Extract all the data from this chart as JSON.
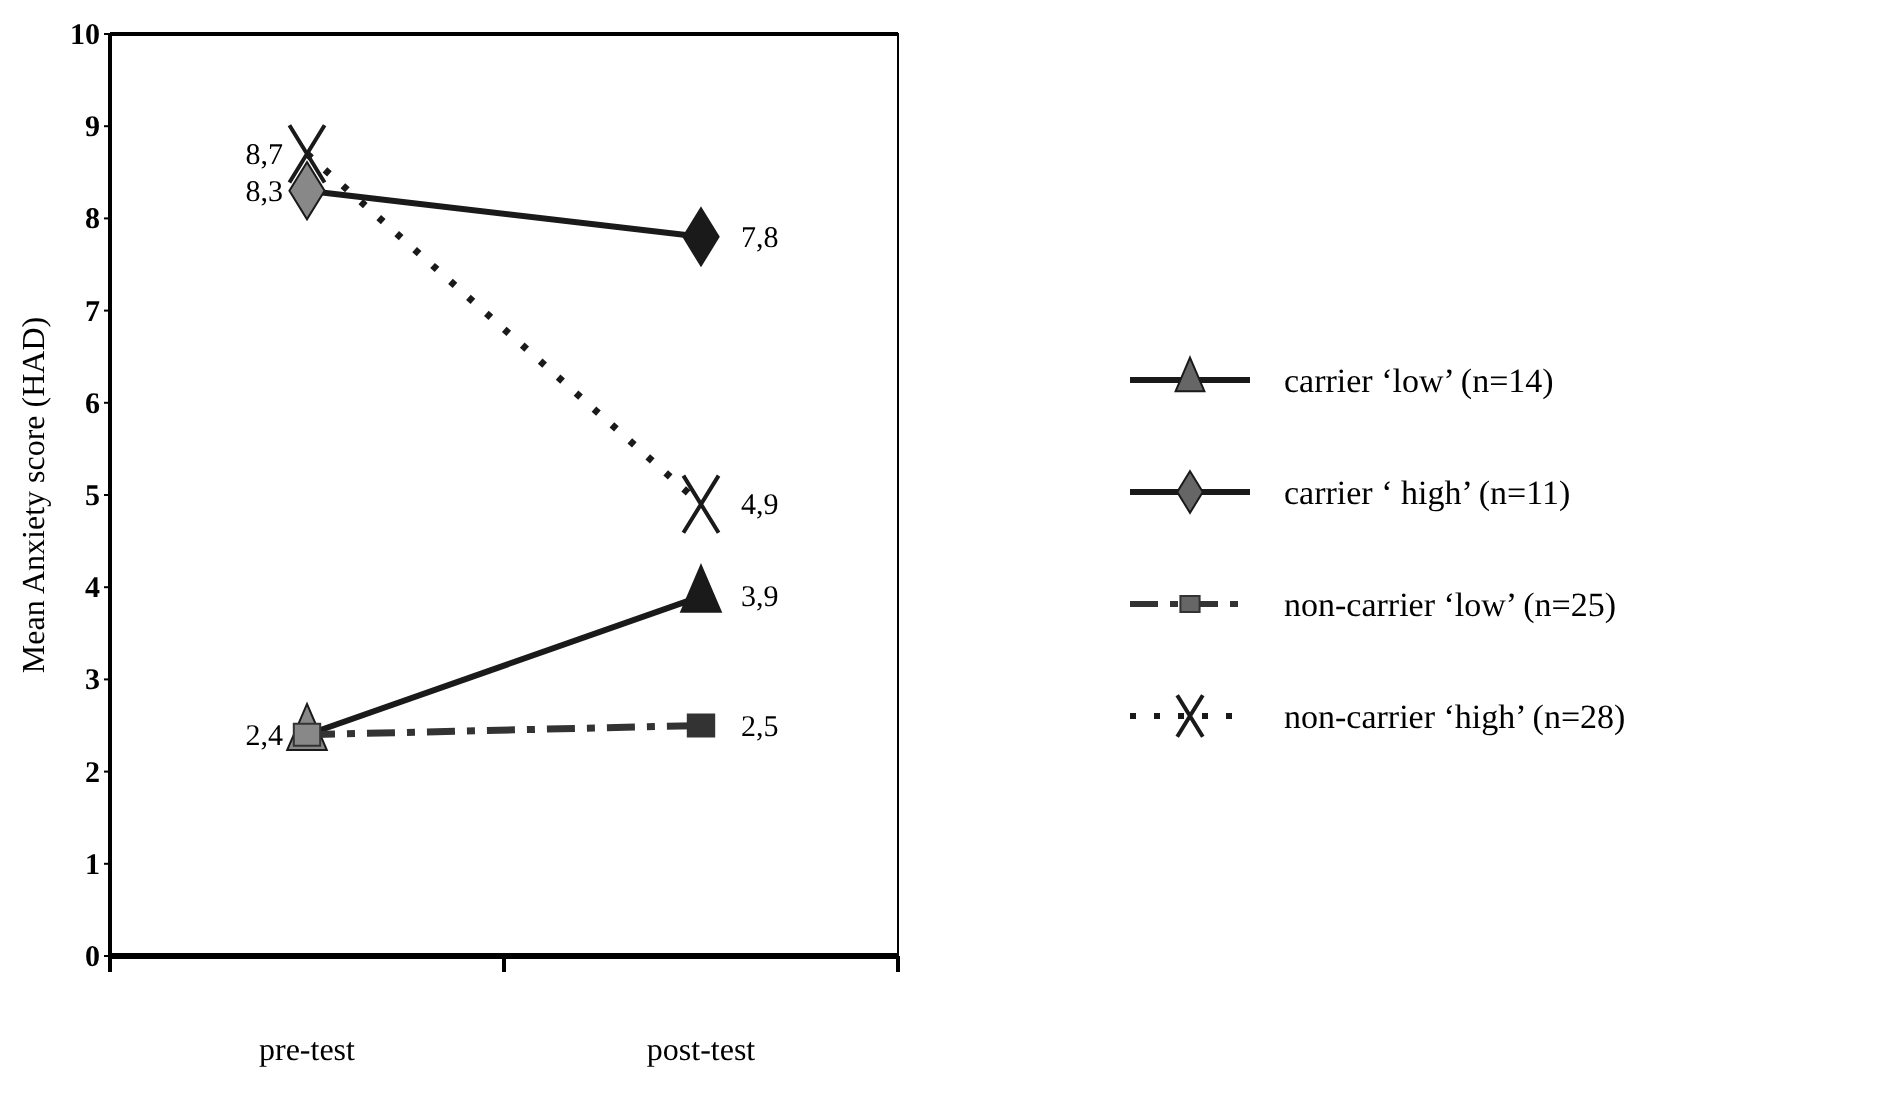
{
  "chart_data": {
    "type": "line",
    "ylabel": "Mean Anxiety score (HAD)",
    "categories": [
      "pre-test",
      "post-test"
    ],
    "ylim": [
      0,
      10
    ],
    "yticks": [
      0,
      1,
      2,
      3,
      4,
      5,
      6,
      7,
      8,
      9,
      10
    ],
    "grid": false,
    "legend": "right",
    "series": [
      {
        "name": "carrier ‘low’ (n=14)",
        "color": "#1a1a1a",
        "values": [
          2.4,
          3.9
        ],
        "marker": "triangle",
        "line_style": "solid",
        "value_labels": [
          "2,4",
          "3,9"
        ]
      },
      {
        "name": "carrier ‘ high’ (n=11)",
        "color": "#1a1a1a",
        "values": [
          8.3,
          7.8
        ],
        "marker": "diamond",
        "line_style": "solid",
        "value_labels": [
          "8,3",
          "7,8"
        ]
      },
      {
        "name": "non-carrier ‘low’ (n=25)",
        "color": "#333333",
        "values": [
          2.4,
          2.5
        ],
        "marker": "square",
        "line_style": "dashed",
        "value_labels": [
          null,
          "2,5"
        ]
      },
      {
        "name": "non-carrier ‘high’ (n=28)",
        "color": "#1a1a1a",
        "values": [
          8.7,
          4.9
        ],
        "marker": "cross",
        "line_style": "dotted",
        "value_labels": [
          "8,7",
          "4,9"
        ]
      }
    ]
  }
}
